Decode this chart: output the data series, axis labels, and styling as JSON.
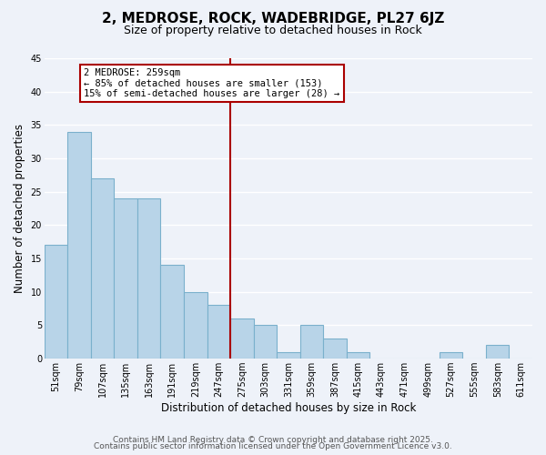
{
  "title": "2, MEDROSE, ROCK, WADEBRIDGE, PL27 6JZ",
  "subtitle": "Size of property relative to detached houses in Rock",
  "xlabel": "Distribution of detached houses by size in Rock",
  "ylabel": "Number of detached properties",
  "bar_color": "#b8d4e8",
  "bar_edgecolor": "#7ab0cc",
  "categories": [
    "51sqm",
    "79sqm",
    "107sqm",
    "135sqm",
    "163sqm",
    "191sqm",
    "219sqm",
    "247sqm",
    "275sqm",
    "303sqm",
    "331sqm",
    "359sqm",
    "387sqm",
    "415sqm",
    "443sqm",
    "471sqm",
    "499sqm",
    "527sqm",
    "555sqm",
    "583sqm",
    "611sqm"
  ],
  "values": [
    17,
    34,
    27,
    24,
    24,
    14,
    10,
    8,
    6,
    5,
    1,
    5,
    3,
    1,
    0,
    0,
    0,
    1,
    0,
    2,
    0
  ],
  "ylim": [
    0,
    45
  ],
  "yticks": [
    0,
    5,
    10,
    15,
    20,
    25,
    30,
    35,
    40,
    45
  ],
  "vline_x": 7.5,
  "vline_color": "#aa0000",
  "annotation_title": "2 MEDROSE: 259sqm",
  "annotation_line1": "← 85% of detached houses are smaller (153)",
  "annotation_line2": "15% of semi-detached houses are larger (28) →",
  "footer1": "Contains HM Land Registry data © Crown copyright and database right 2025.",
  "footer2": "Contains public sector information licensed under the Open Government Licence v3.0.",
  "background_color": "#eef2f9",
  "grid_color": "#ffffff",
  "title_fontsize": 11,
  "subtitle_fontsize": 9,
  "axis_label_fontsize": 8.5,
  "tick_fontsize": 7,
  "footer_fontsize": 6.5,
  "annotation_fontsize": 7.5
}
